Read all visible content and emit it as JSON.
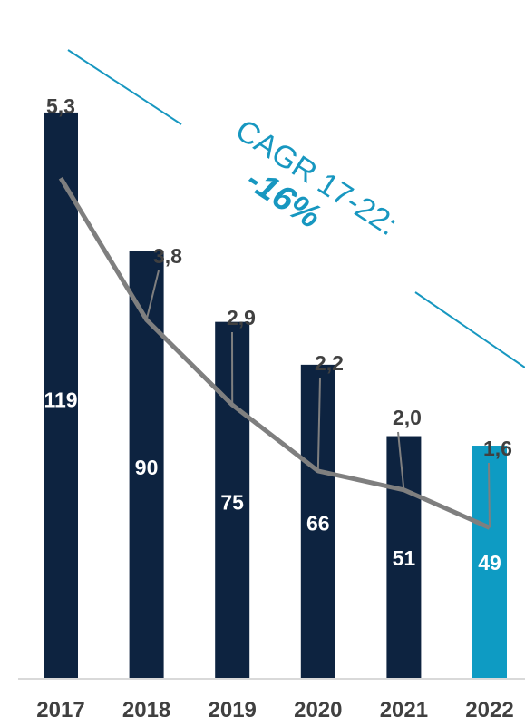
{
  "colors": {
    "bar": "#0d2340",
    "bar_highlight": "#0e9bc3",
    "line": "#7f7f7f",
    "text": "#404040",
    "accent": "#1797c0"
  },
  "chart_data": {
    "type": "bar",
    "categories": [
      "2017",
      "2018",
      "2019",
      "2020",
      "2021",
      "2022"
    ],
    "series": [
      {
        "values": [
          119,
          90,
          75,
          66,
          51,
          49
        ]
      },
      {
        "type": "line",
        "values": [
          5.3,
          3.8,
          2.9,
          2.2,
          2.0,
          1.6
        ],
        "labels": [
          "5,3",
          "3,8",
          "2,9",
          "2,2",
          "2,0",
          "1,6"
        ]
      }
    ],
    "highlight_index": 5,
    "bar_ylim": [
      0,
      135
    ],
    "line_ylim": [
      0,
      6.8
    ],
    "annotation": {
      "text": "CAGR 17-22:",
      "value": "-16%"
    },
    "legend": "none",
    "grid": false
  }
}
